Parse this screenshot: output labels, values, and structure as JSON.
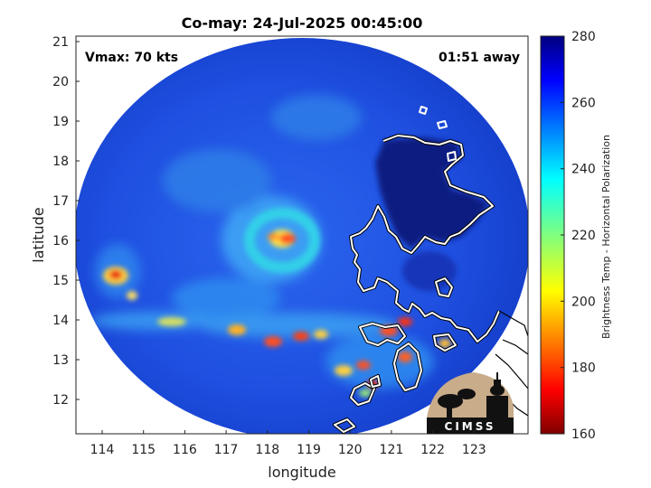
{
  "title": "Co-may: 24-Jul-2025 00:45:00",
  "vmax_label": "Vmax: 70 kts",
  "time_label": "01:51 away",
  "xlabel": "longitude",
  "ylabel": "latitude",
  "x_ticks": [
    "114",
    "115",
    "116",
    "117",
    "118",
    "119",
    "120",
    "121",
    "122",
    "123"
  ],
  "y_ticks": [
    "21",
    "20",
    "19",
    "18",
    "17",
    "16",
    "15",
    "14",
    "13",
    "12"
  ],
  "colorbar": {
    "label": "Brightness Temp - Horizontal Polarization",
    "ticks": [
      "280",
      "260",
      "240",
      "220",
      "200",
      "180",
      "160"
    ],
    "range": [
      160,
      280
    ],
    "colormap": "jet"
  },
  "logo": {
    "text": "CIMSS"
  },
  "colors": {
    "background_blue": "#1f4fe0",
    "land_dark": "#0b1a80",
    "coastline": "#ffffff"
  },
  "map": {
    "lon_range": [
      113.5,
      123.9
    ],
    "lat_range": [
      11.2,
      21.2
    ],
    "storm_center": {
      "lon": 118.1,
      "lat": 16.0
    }
  }
}
